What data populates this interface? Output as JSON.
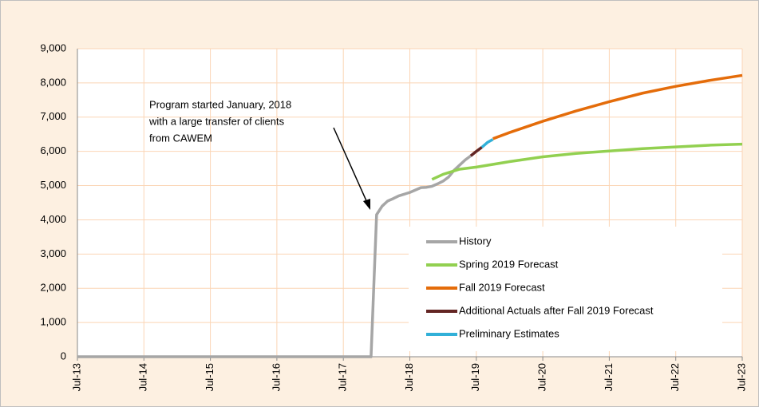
{
  "chart_data": {
    "type": "line",
    "annotation": [
      "Program started January, 2018",
      "with a large transfer of clients",
      "from CAWEM"
    ],
    "xlim": [
      "2013-07",
      "2023-07"
    ],
    "xticks": [
      {
        "value": "2013-07",
        "label": "Jul-13"
      },
      {
        "value": "2014-07",
        "label": "Jul-14"
      },
      {
        "value": "2015-07",
        "label": "Jul-15"
      },
      {
        "value": "2016-07",
        "label": "Jul-16"
      },
      {
        "value": "2017-07",
        "label": "Jul-17"
      },
      {
        "value": "2018-07",
        "label": "Jul-18"
      },
      {
        "value": "2019-07",
        "label": "Jul-19"
      },
      {
        "value": "2020-07",
        "label": "Jul-20"
      },
      {
        "value": "2021-07",
        "label": "Jul-21"
      },
      {
        "value": "2022-07",
        "label": "Jul-22"
      },
      {
        "value": "2023-07",
        "label": "Jul-23"
      }
    ],
    "ylim": [
      0,
      9000
    ],
    "yticks": [
      {
        "value": 0,
        "label": "0"
      },
      {
        "value": 1000,
        "label": "1,000"
      },
      {
        "value": 2000,
        "label": "2,000"
      },
      {
        "value": 3000,
        "label": "3,000"
      },
      {
        "value": 4000,
        "label": "4,000"
      },
      {
        "value": 5000,
        "label": "5,000"
      },
      {
        "value": 6000,
        "label": "6,000"
      },
      {
        "value": 7000,
        "label": "7,000"
      },
      {
        "value": 8000,
        "label": "8,000"
      },
      {
        "value": 9000,
        "label": "9,000"
      }
    ],
    "grid": true,
    "series": [
      {
        "name": "History",
        "color": "#a6a6a6",
        "x": [
          "2013-07",
          "2017-12",
          "2018-01",
          "2018-02",
          "2018-03",
          "2018-04",
          "2018-05",
          "2018-06",
          "2018-07",
          "2018-08",
          "2018-09",
          "2018-10",
          "2018-11",
          "2018-12",
          "2019-01",
          "2019-02",
          "2019-03",
          "2019-04",
          "2019-05",
          "2019-06"
        ],
        "values": [
          0,
          0,
          4150,
          4400,
          4550,
          4620,
          4700,
          4750,
          4800,
          4870,
          4940,
          4950,
          4980,
          5050,
          5130,
          5250,
          5450,
          5600,
          5750,
          5870
        ]
      },
      {
        "name": "Spring 2019 Forecast",
        "color": "#92d050",
        "x": [
          "2018-11",
          "2019-01",
          "2019-04",
          "2019-07",
          "2020-01",
          "2020-07",
          "2021-01",
          "2021-07",
          "2022-01",
          "2022-07",
          "2023-01",
          "2023-07"
        ],
        "values": [
          5180,
          5330,
          5480,
          5540,
          5700,
          5840,
          5940,
          6010,
          6080,
          6130,
          6180,
          6210
        ]
      },
      {
        "name": "Fall 2019 Forecast",
        "color": "#e46c0a",
        "x": [
          "2019-10",
          "2020-01",
          "2020-07",
          "2021-01",
          "2021-07",
          "2022-01",
          "2022-07",
          "2023-01",
          "2023-07"
        ],
        "values": [
          6370,
          6550,
          6880,
          7180,
          7450,
          7700,
          7900,
          8070,
          8220
        ]
      },
      {
        "name": "Additional Actuals after Fall 2019 Forecast",
        "color": "#632523",
        "x": [
          "2019-06",
          "2019-07",
          "2019-08"
        ],
        "values": [
          5870,
          6000,
          6120
        ]
      },
      {
        "name": "Preliminary Estimates",
        "color": "#31b0d8",
        "x": [
          "2019-08",
          "2019-09",
          "2019-10"
        ],
        "values": [
          6120,
          6260,
          6350
        ]
      }
    ]
  }
}
